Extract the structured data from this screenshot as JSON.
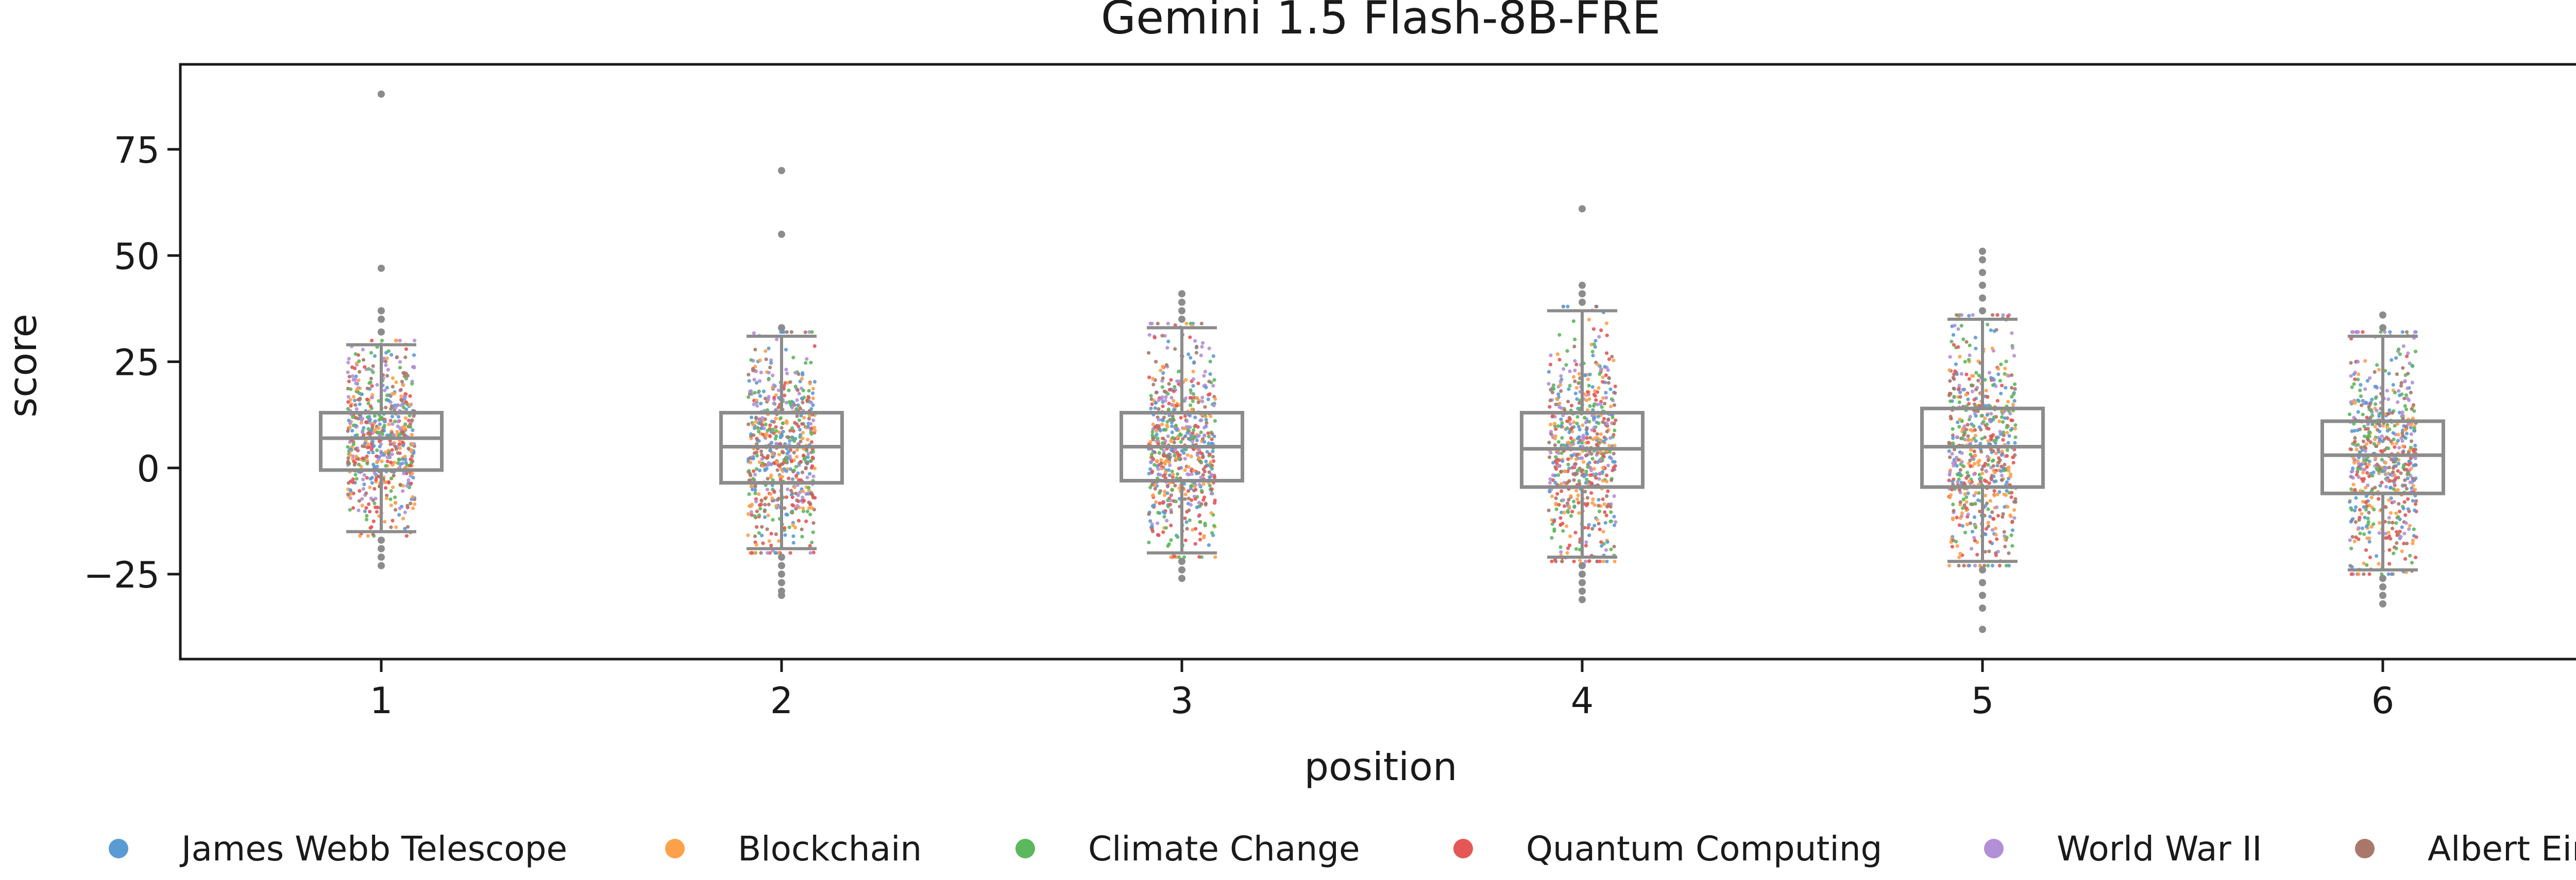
{
  "chart_data": {
    "type": "box",
    "title": "Gemini 1.5 Flash-8B-FRE",
    "xlabel": "position",
    "ylabel": "score",
    "categories": [
      "1",
      "2",
      "3",
      "4",
      "5",
      "6"
    ],
    "ylim": [
      -45,
      95
    ],
    "yticks": [
      -25,
      0,
      25,
      50,
      75
    ],
    "ytick_labels": [
      "−25",
      "0",
      "25",
      "50",
      "75"
    ],
    "grid": false,
    "legend_position": "bottom",
    "series": [
      {
        "name": "James Webb Telescope",
        "color": "#5b9bd5"
      },
      {
        "name": "Blockchain",
        "color": "#ffa04a"
      },
      {
        "name": "Climate Change",
        "color": "#5cb85c"
      },
      {
        "name": "Quantum Computing",
        "color": "#e45756"
      },
      {
        "name": "World War II",
        "color": "#b28fd6"
      },
      {
        "name": "Albert Einstein",
        "color": "#a9786b"
      }
    ],
    "boxes": [
      {
        "position": "1",
        "whisker_low": -15,
        "q1": -0.5,
        "median": 7,
        "q3": 13,
        "whisker_high": 29,
        "outliers": [
          -17,
          -19,
          -21,
          -23,
          32,
          35,
          37,
          47,
          88
        ]
      },
      {
        "position": "2",
        "whisker_low": -19,
        "q1": -3.5,
        "median": 5,
        "q3": 13,
        "whisker_high": 31,
        "outliers": [
          -21,
          -23,
          -25,
          -27,
          -29,
          -30,
          33,
          55,
          70
        ]
      },
      {
        "position": "3",
        "whisker_low": -20,
        "q1": -3,
        "median": 5,
        "q3": 13,
        "whisker_high": 33,
        "outliers": [
          -22,
          -24,
          -26,
          35,
          37,
          39,
          41
        ]
      },
      {
        "position": "4",
        "whisker_low": -21,
        "q1": -4.5,
        "median": 4.5,
        "q3": 13,
        "whisker_high": 37,
        "outliers": [
          -23,
          -25,
          -27,
          -29,
          -31,
          39,
          41,
          43,
          61
        ]
      },
      {
        "position": "5",
        "whisker_low": -22,
        "q1": -4.5,
        "median": 5,
        "q3": 14,
        "whisker_high": 35,
        "outliers": [
          -24,
          -27,
          -30,
          -33,
          -38,
          37,
          40,
          43,
          46,
          49,
          51
        ]
      },
      {
        "position": "6",
        "whisker_low": -24,
        "q1": -6,
        "median": 3,
        "q3": 11,
        "whisker_high": 31,
        "outliers": [
          -26,
          -28,
          -30,
          -32,
          33,
          36
        ]
      }
    ]
  }
}
